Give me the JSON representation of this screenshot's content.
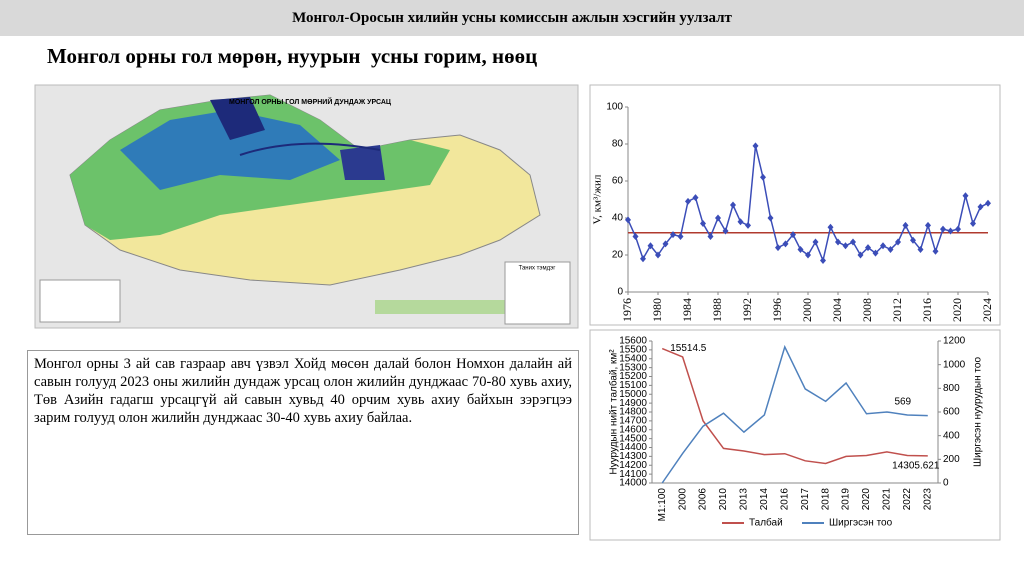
{
  "header": {
    "title": "Монгол-Оросын хилийн усны комиссын ажлын хэсгийн уулзалт"
  },
  "slide_title": "Монгол орны гол мөрөн, нуурын  усны горим, нөөц",
  "map": {
    "title": "МОНГОЛ ОРНЫ ГОЛ МӨРНИЙ ДУНДАЖ УРСАЦ",
    "legend_title": "Таних тэмдэг"
  },
  "text": "Монгол орны 3 ай сав газраар авч үзвэл Хойд мөсөн далай болон Номхон далайн ай савын голууд 2023 оны жилийн дундаж урсац олон жилийн дунджаас 70-80 хувь ахиу, Төв Азийн гадагш урсацгүй ай савын хувьд 40 орчим хувь ахиу байхын зэрэгцээ зарим голууд олон жилийн дунджаас 30-40 хувь ахиу байлаа.",
  "chart_data": [
    {
      "type": "line",
      "y_label": "V, км³/жил",
      "x": [
        1976,
        1977,
        1978,
        1979,
        1980,
        1981,
        1982,
        1983,
        1984,
        1985,
        1986,
        1987,
        1988,
        1989,
        1990,
        1991,
        1992,
        1993,
        1994,
        1995,
        1996,
        1997,
        1998,
        1999,
        2000,
        2001,
        2002,
        2003,
        2004,
        2005,
        2006,
        2007,
        2008,
        2009,
        2010,
        2011,
        2012,
        2013,
        2014,
        2015,
        2016,
        2017,
        2018,
        2019,
        2020,
        2021,
        2022,
        2023,
        2024
      ],
      "series": [
        {
          "color": "#3b4db8",
          "values": [
            39,
            30,
            18,
            25,
            20,
            26,
            31,
            30,
            49,
            51,
            37,
            30,
            40,
            33,
            47,
            38,
            36,
            79,
            62,
            40,
            24,
            26,
            31,
            23,
            20,
            27,
            17,
            35,
            27,
            25,
            27,
            20,
            24,
            21,
            25,
            23,
            27,
            36,
            28,
            23,
            36,
            22,
            34,
            33,
            34,
            52,
            37,
            46,
            48
          ]
        }
      ],
      "reference_line": 32,
      "reference_color": "#b03a2e",
      "xlim": [
        1976,
        2024
      ],
      "xticks": [
        1976,
        1980,
        1984,
        1988,
        1992,
        1996,
        2000,
        2004,
        2008,
        2012,
        2016,
        2020,
        2024
      ],
      "ylim": [
        0,
        100
      ],
      "yticks": [
        0,
        20,
        40,
        60,
        80,
        100
      ],
      "grid": false
    },
    {
      "type": "line",
      "y_label": "Нуурудын нийт талбай, км²",
      "y2_label": "Ширгэсэн нуурудын тоо",
      "categories": [
        "M1:100",
        "2000",
        "2006",
        "2010",
        "2013",
        "2014",
        "2016",
        "2017",
        "2018",
        "2019",
        "2020",
        "2021",
        "2022",
        "2023"
      ],
      "series": [
        {
          "name": "Талбай",
          "color": "#c0504d",
          "values": [
            15514.5,
            15420,
            14700,
            14390,
            14360,
            14320,
            14330,
            14250,
            14220,
            14300,
            14310,
            14350,
            14310,
            14305.621
          ]
        },
        {
          "name": "Ширгэсэн тоо",
          "color": "#4f81bd",
          "axis": "y2",
          "values": [
            0,
            250,
            480,
            590,
            430,
            575,
            1150,
            795,
            690,
            845,
            585,
            600,
            575,
            569
          ]
        }
      ],
      "value_label_points": [
        [
          0,
          0
        ],
        [
          0,
          13
        ],
        [
          1,
          13
        ]
      ],
      "ylim": [
        14000,
        15600
      ],
      "yticks": [
        14000,
        14100,
        14200,
        14300,
        14400,
        14500,
        14600,
        14700,
        14800,
        14900,
        15000,
        15100,
        15200,
        15300,
        15400,
        15500,
        15600
      ],
      "y2lim": [
        0,
        1200
      ],
      "y2ticks": [
        0,
        200,
        400,
        600,
        800,
        1000,
        1200
      ],
      "legend": "bottom"
    }
  ]
}
